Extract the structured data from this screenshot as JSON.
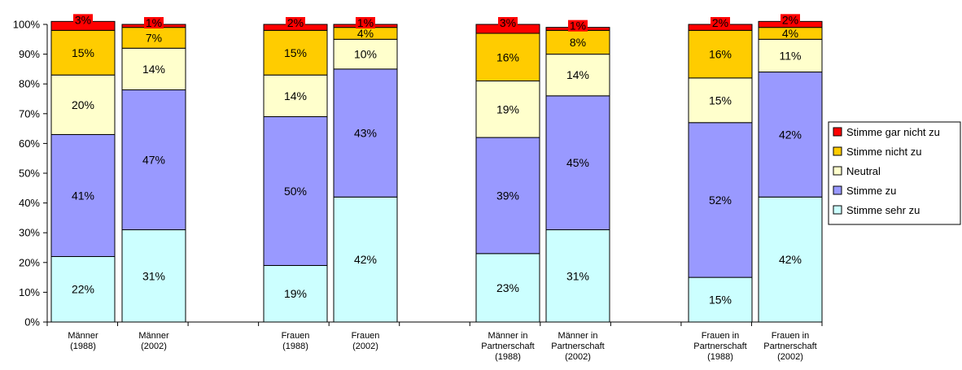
{
  "chart_data": {
    "type": "bar",
    "stacked": true,
    "percent": true,
    "title": "",
    "xlabel": "",
    "ylabel": "",
    "ylim": [
      0,
      100
    ],
    "yticks": [
      "0%",
      "10%",
      "20%",
      "30%",
      "40%",
      "50%",
      "60%",
      "70%",
      "80%",
      "90%",
      "100%"
    ],
    "grid": false,
    "legend_position": "right",
    "categories": [
      [
        "Männer",
        "(1988)"
      ],
      [
        "Männer",
        "(2002)"
      ],
      [
        "Frauen",
        "(1988)"
      ],
      [
        "Frauen",
        "(2002)"
      ],
      [
        "Männer in",
        "Partnerschaft",
        "(1988)"
      ],
      [
        "Männer in",
        "Partnerschaft",
        "(2002)"
      ],
      [
        "Frauen in",
        "Partnerschaft",
        "(1988)"
      ],
      [
        "Frauen in",
        "Partnerschaft",
        "(2002)"
      ]
    ],
    "series": [
      {
        "name": "Stimme sehr zu",
        "color": "#ccffff",
        "values": [
          22,
          31,
          19,
          42,
          23,
          31,
          15,
          42
        ],
        "labels": [
          "22%",
          "31%",
          "19%",
          "42%",
          "23%",
          "31%",
          "15%",
          "42%"
        ]
      },
      {
        "name": "Stimme zu",
        "color": "#9999ff",
        "values": [
          41,
          47,
          50,
          43,
          39,
          45,
          52,
          42
        ],
        "labels": [
          "41%",
          "47%",
          "50%",
          "43%",
          "39%",
          "45%",
          "52%",
          "42%"
        ]
      },
      {
        "name": "Neutral",
        "color": "#ffffcc",
        "values": [
          20,
          14,
          14,
          10,
          19,
          14,
          15,
          11
        ],
        "labels": [
          "20%",
          "14%",
          "14%",
          "10%",
          "19%",
          "14%",
          "15%",
          "11%"
        ]
      },
      {
        "name": "Stimme nicht zu",
        "color": "#ffcc00",
        "values": [
          15,
          7,
          15,
          4,
          16,
          8,
          16,
          4
        ],
        "labels": [
          "15%",
          "7%",
          "15%",
          "4%",
          "16%",
          "8%",
          "16%",
          "4%"
        ]
      },
      {
        "name": "Stimme gar nicht zu",
        "color": "#ff0000",
        "values": [
          3,
          1,
          2,
          1,
          3,
          1,
          2,
          2
        ],
        "labels": [
          "3%",
          "1%",
          "2%",
          "1%",
          "3%",
          "1%",
          "2%",
          "2%"
        ]
      }
    ]
  }
}
